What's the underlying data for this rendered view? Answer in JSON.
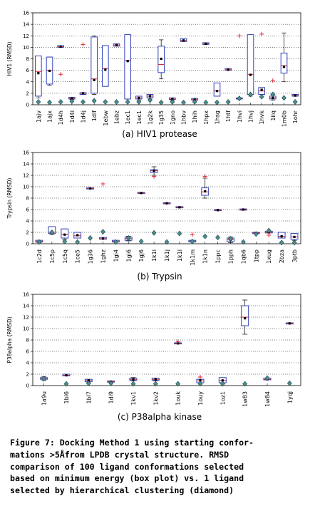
{
  "chart_data": [
    {
      "type": "box",
      "ylabel": "HIV1 (RMSD)",
      "ylim": [
        0,
        16
      ],
      "yticks": [
        0,
        2,
        4,
        6,
        8,
        10,
        12,
        14,
        16
      ],
      "caption": "(a) HIV1 protease",
      "categories": [
        "1ajv",
        "1ajx",
        "1d4h",
        "1d4i",
        "1d4j",
        "1dif",
        "1ebw",
        "1ebz",
        "1ec1",
        "1ec1",
        "1g2k",
        "1g35",
        "1gno",
        "1hbv",
        "1hih",
        "1hpx",
        "1hsg",
        "1htf",
        "1hvi",
        "1hvj",
        "1hvk",
        "1iiq",
        "1m0b",
        "1ohr"
      ],
      "series": [
        {
          "kind": "box",
          "values": [
            {
              "q1": 1.5,
              "q3": 8.5,
              "lo": 1.2,
              "hi": 8.5,
              "median": 5.8,
              "mean": 5.5
            },
            {
              "q1": 3.6,
              "q3": 8.3,
              "lo": 3.4,
              "hi": 8.3,
              "median": 6.0,
              "mean": 5.9
            },
            {
              "q1": 10.0,
              "q3": 10.3,
              "lo": 10.0,
              "hi": 10.3,
              "median": 10.1,
              "mean": 10.1
            },
            {
              "q1": 1.0,
              "q3": 1.3,
              "lo": 0.9,
              "hi": 1.3,
              "median": 1.1,
              "mean": 1.1
            },
            {
              "q1": 1.8,
              "q3": 2.1,
              "lo": 1.8,
              "hi": 2.1,
              "median": 2.0,
              "mean": 2.0
            },
            {
              "q1": 2.0,
              "q3": 11.8,
              "lo": 1.8,
              "hi": 12.0,
              "median": 4.5,
              "mean": 4.3
            },
            {
              "q1": 3.2,
              "q3": 10.3,
              "lo": 3.2,
              "hi": 10.3,
              "median": 6.3,
              "mean": 6.1
            },
            {
              "q1": 10.2,
              "q3": 10.6,
              "lo": 10.2,
              "hi": 10.6,
              "median": 10.4,
              "mean": 10.4
            },
            {
              "q1": 1.0,
              "q3": 12.2,
              "lo": 1.0,
              "hi": 12.2,
              "median": 7.7,
              "mean": 7.6
            },
            {
              "q1": 1.0,
              "q3": 1.5,
              "lo": 0.8,
              "hi": 1.5,
              "median": 1.2,
              "mean": 1.2
            },
            {
              "q1": 1.2,
              "q3": 1.8,
              "lo": 1.0,
              "hi": 1.8,
              "median": 1.5,
              "mean": 1.5
            },
            {
              "q1": 5.6,
              "q3": 10.2,
              "lo": 4.5,
              "hi": 11.3,
              "median": 7.0,
              "mean": 8.0
            },
            {
              "q1": 0.9,
              "q3": 1.2,
              "lo": 0.8,
              "hi": 1.2,
              "median": 1.0,
              "mean": 1.0
            },
            {
              "q1": 11.0,
              "q3": 11.5,
              "lo": 11.0,
              "hi": 11.5,
              "median": 11.2,
              "mean": 11.2
            },
            {
              "q1": 0.8,
              "q3": 1.1,
              "lo": 0.8,
              "hi": 1.1,
              "median": 0.9,
              "mean": 0.9
            },
            {
              "q1": 10.5,
              "q3": 10.8,
              "lo": 10.5,
              "hi": 10.8,
              "median": 10.6,
              "mean": 10.6
            },
            {
              "q1": 1.5,
              "q3": 3.8,
              "lo": 1.5,
              "hi": 3.8,
              "median": 2.4,
              "mean": 2.4
            },
            {
              "q1": 6.0,
              "q3": 6.3,
              "lo": 6.0,
              "hi": 6.3,
              "median": 6.1,
              "mean": 6.1
            },
            {
              "q1": 1.0,
              "q3": 1.2,
              "lo": 1.0,
              "hi": 1.2,
              "median": 1.1,
              "mean": 1.1
            },
            {
              "q1": 1.8,
              "q3": 12.2,
              "lo": 1.5,
              "hi": 12.2,
              "median": 5.3,
              "mean": 5.2
            },
            {
              "q1": 1.8,
              "q3": 3.0,
              "lo": 1.8,
              "hi": 3.0,
              "median": 2.4,
              "mean": 2.6
            },
            {
              "q1": 1.0,
              "q3": 1.5,
              "lo": 0.8,
              "hi": 1.5,
              "median": 1.2,
              "mean": 1.2
            },
            {
              "q1": 5.5,
              "q3": 9.0,
              "lo": 4.0,
              "hi": 12.5,
              "median": 6.8,
              "mean": 6.6
            },
            {
              "q1": 1.5,
              "q3": 1.8,
              "lo": 1.5,
              "hi": 1.8,
              "median": 1.6,
              "mean": 1.6
            }
          ]
        },
        {
          "kind": "diamond",
          "values": [
            0.5,
            0.4,
            0.5,
            0.6,
            0.5,
            0.7,
            0.5,
            0.5,
            0.5,
            0.5,
            0.8,
            0.4,
            0.5,
            0.4,
            0.5,
            0.4,
            0.4,
            0.5,
            1.1,
            1.8,
            1.4,
            1.8,
            1.2,
            0.5
          ]
        },
        {
          "kind": "plus",
          "values": [
            null,
            null,
            5.3,
            null,
            10.5,
            null,
            null,
            null,
            null,
            null,
            null,
            null,
            null,
            null,
            null,
            null,
            null,
            null,
            12.0,
            null,
            12.3,
            4.2,
            null,
            null
          ]
        }
      ]
    },
    {
      "type": "box",
      "ylabel": "Trypsin (RMSD)",
      "ylim": [
        0,
        16
      ],
      "yticks": [
        0,
        2,
        4,
        6,
        8,
        10,
        12,
        14,
        16
      ],
      "caption": "(b) Trypsin",
      "categories": [
        "1c2d",
        "1c5p",
        "1c5q",
        "1ce5",
        "1g36",
        "1ghz",
        "1gi4",
        "1gi6",
        "1gj6",
        "1k1i",
        "1k1j",
        "1k1l",
        "1k1m",
        "1k1n",
        "1ppc",
        "1pph",
        "1qb6",
        "1tpp",
        "1xug",
        "2bza",
        "3ptb"
      ],
      "series": [
        {
          "kind": "box",
          "values": [
            {
              "q1": 0.3,
              "q3": 0.6,
              "lo": 0.2,
              "hi": 0.6,
              "median": 0.4,
              "mean": 0.4
            },
            {
              "q1": 1.8,
              "q3": 3.0,
              "lo": 1.6,
              "hi": 3.0,
              "median": 2.0,
              "mean": 2.0
            },
            {
              "q1": 1.0,
              "q3": 2.6,
              "lo": 0.8,
              "hi": 2.6,
              "median": 1.6,
              "mean": 1.6
            },
            {
              "q1": 1.0,
              "q3": 2.0,
              "lo": 1.0,
              "hi": 2.0,
              "median": 1.4,
              "mean": 1.5
            },
            {
              "q1": 9.6,
              "q3": 9.8,
              "lo": 9.6,
              "hi": 9.8,
              "median": 9.7,
              "mean": 9.7
            },
            {
              "q1": 0.8,
              "q3": 1.1,
              "lo": 0.8,
              "hi": 1.1,
              "median": 0.9,
              "mean": 0.9
            },
            {
              "q1": 0.3,
              "q3": 0.6,
              "lo": 0.3,
              "hi": 0.6,
              "median": 0.4,
              "mean": 0.4
            },
            {
              "q1": 0.6,
              "q3": 1.2,
              "lo": 0.5,
              "hi": 1.3,
              "median": 0.9,
              "mean": 0.9
            },
            {
              "q1": 8.8,
              "q3": 9.0,
              "lo": 8.8,
              "hi": 9.0,
              "median": 8.9,
              "mean": 8.9
            },
            {
              "q1": 12.5,
              "q3": 13.0,
              "lo": 12.0,
              "hi": 13.5,
              "median": 12.8,
              "mean": 12.8
            },
            {
              "q1": 7.0,
              "q3": 7.2,
              "lo": 7.0,
              "hi": 7.2,
              "median": 7.1,
              "mean": 7.1
            },
            {
              "q1": 6.3,
              "q3": 6.5,
              "lo": 6.3,
              "hi": 6.5,
              "median": 6.4,
              "mean": 6.4
            },
            {
              "q1": 0.3,
              "q3": 0.6,
              "lo": 0.3,
              "hi": 0.6,
              "median": 0.4,
              "mean": 0.4
            },
            {
              "q1": 8.5,
              "q3": 9.8,
              "lo": 8.0,
              "hi": 11.5,
              "median": 9.1,
              "mean": 9.2
            },
            {
              "q1": 5.8,
              "q3": 6.0,
              "lo": 5.8,
              "hi": 6.0,
              "median": 5.9,
              "mean": 5.9
            },
            {
              "q1": 0.4,
              "q3": 1.0,
              "lo": 0.2,
              "hi": 1.2,
              "median": 0.7,
              "mean": 0.7
            },
            {
              "q1": 5.9,
              "q3": 6.1,
              "lo": 5.9,
              "hi": 6.1,
              "median": 6.0,
              "mean": 6.0
            },
            {
              "q1": 1.8,
              "q3": 2.0,
              "lo": 1.8,
              "hi": 2.0,
              "median": 1.9,
              "mean": 1.9
            },
            {
              "q1": 1.9,
              "q3": 2.2,
              "lo": 1.9,
              "hi": 2.2,
              "median": 2.0,
              "mean": 2.0
            },
            {
              "q1": 1.0,
              "q3": 2.0,
              "lo": 1.0,
              "hi": 2.0,
              "median": 1.3,
              "mean": 1.3
            },
            {
              "q1": 0.8,
              "q3": 1.8,
              "lo": 0.6,
              "hi": 1.8,
              "median": 1.2,
              "mean": 1.2
            }
          ]
        },
        {
          "kind": "diamond",
          "values": [
            0.3,
            2.0,
            0.4,
            0.3,
            1.0,
            2.1,
            0.3,
            1.0,
            0.4,
            1.9,
            0.3,
            1.8,
            0.4,
            1.3,
            1.1,
            0.9,
            0.3,
            1.7,
            2.3,
            0.2,
            0.2
          ]
        },
        {
          "kind": "plus",
          "values": [
            null,
            null,
            null,
            null,
            null,
            10.5,
            null,
            null,
            null,
            11.8,
            null,
            null,
            1.6,
            11.8,
            null,
            null,
            null,
            null,
            1.5,
            null,
            null
          ]
        }
      ]
    },
    {
      "type": "box",
      "ylabel": "P38alpha (RMSD)",
      "ylim": [
        0,
        16
      ],
      "yticks": [
        0,
        2,
        4,
        6,
        8,
        10,
        12,
        14,
        16
      ],
      "caption": "(c) P38alpha kinase",
      "categories": [
        "1a9u",
        "1bl6",
        "1bl7",
        "1di9",
        "1kv1",
        "1kv2",
        "1ouk",
        "1ouy",
        "1oz1",
        "1w83",
        "1w84",
        "1yqj"
      ],
      "series": [
        {
          "kind": "box",
          "values": [
            {
              "q1": 1.1,
              "q3": 1.4,
              "lo": 0.9,
              "hi": 1.6,
              "median": 1.2,
              "mean": 1.2
            },
            {
              "q1": 1.7,
              "q3": 2.0,
              "lo": 1.7,
              "hi": 2.0,
              "median": 1.8,
              "mean": 1.8
            },
            {
              "q1": 0.7,
              "q3": 1.1,
              "lo": 0.5,
              "hi": 1.1,
              "median": 0.9,
              "mean": 0.9
            },
            {
              "q1": 0.6,
              "q3": 0.8,
              "lo": 0.6,
              "hi": 0.8,
              "median": 0.7,
              "mean": 0.7
            },
            {
              "q1": 0.9,
              "q3": 1.3,
              "lo": 0.8,
              "hi": 1.4,
              "median": 1.1,
              "mean": 1.1
            },
            {
              "q1": 0.9,
              "q3": 1.3,
              "lo": 0.8,
              "hi": 1.3,
              "median": 1.1,
              "mean": 1.1
            },
            {
              "q1": 7.3,
              "q3": 7.5,
              "lo": 7.3,
              "hi": 7.5,
              "median": 7.4,
              "mean": 7.4
            },
            {
              "q1": 0.5,
              "q3": 1.1,
              "lo": 0.5,
              "hi": 1.1,
              "median": 0.8,
              "mean": 0.9
            },
            {
              "q1": 0.5,
              "q3": 1.4,
              "lo": 0.3,
              "hi": 1.4,
              "median": 0.9,
              "mean": 0.9
            },
            {
              "q1": 10.5,
              "q3": 14.0,
              "lo": 9.0,
              "hi": 15.0,
              "median": 12.0,
              "mean": 11.8
            },
            {
              "q1": 1.0,
              "q3": 1.3,
              "lo": 1.0,
              "hi": 1.3,
              "median": 1.1,
              "mean": 1.1
            },
            {
              "q1": 10.8,
              "q3": 11.0,
              "lo": 10.8,
              "hi": 11.0,
              "median": 10.9,
              "mean": 10.9
            }
          ]
        },
        {
          "kind": "diamond",
          "values": [
            1.2,
            0.3,
            0.4,
            0.4,
            0.3,
            0.3,
            0.3,
            0.3,
            0.3,
            0.3,
            1.3,
            0.4
          ]
        },
        {
          "kind": "plus",
          "values": [
            null,
            null,
            null,
            null,
            null,
            null,
            7.7,
            1.5,
            null,
            null,
            null,
            null
          ]
        }
      ]
    }
  ],
  "figure_caption_lines": [
    "Figure 7: Docking Method 1 using starting confor-",
    "mations >5Åfrom LPDB crystal structure. RMSD",
    "comparison of 100 ligand conformations selected",
    "based on minimum energy (box plot) vs. 1 ligand",
    "selected by hierarchical clustering (diamond)"
  ],
  "colors": {
    "box": "#3344bb",
    "median": "#cc2233",
    "mean": "#000000",
    "diamond_fill": "#4a8f8f",
    "diamond_stroke": "#1f4545",
    "plus": "#dd2233",
    "grid": "#000000"
  }
}
